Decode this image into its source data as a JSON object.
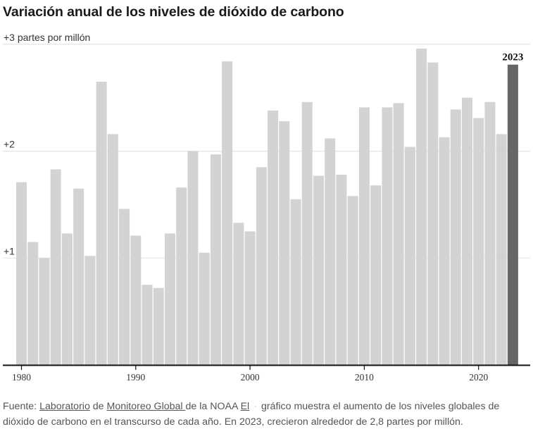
{
  "title": "Variación anual de los niveles de dióxido de carbono",
  "footer": {
    "source_prefix": "Fuente: ",
    "link1": "Laboratorio",
    "mid1": " de ",
    "link2": "Monitoreo Global ",
    "mid2": "de la NOAA ",
    "link3": "El",
    "separator": "·",
    "text": "gráfico muestra el aumento de los niveles globales de dióxido de carbono en el transcurso de cada año. En 2023, crecieron alrededor de 2,8 partes por millón."
  },
  "chart_data": {
    "type": "bar",
    "title": "Variación anual de los niveles de dióxido de carbono",
    "xlabel": "",
    "ylabel": "partes por millón",
    "ylim": [
      0,
      3
    ],
    "grid": true,
    "y_ticks": [
      {
        "value": 1,
        "label": "+1"
      },
      {
        "value": 2,
        "label": "+2"
      },
      {
        "value": 3,
        "label": "+3 partes por millón"
      }
    ],
    "x_ticks": [
      {
        "value": 1980,
        "label": "1980"
      },
      {
        "value": 1990,
        "label": "1990"
      },
      {
        "value": 2000,
        "label": "2000"
      },
      {
        "value": 2010,
        "label": "2010"
      },
      {
        "value": 2020,
        "label": "2020"
      }
    ],
    "highlight": {
      "year": 2023,
      "label": "2023",
      "color": "#666666"
    },
    "bar_color": "#d3d3d3",
    "categories": [
      1980,
      1981,
      1982,
      1983,
      1984,
      1985,
      1986,
      1987,
      1988,
      1989,
      1990,
      1991,
      1992,
      1993,
      1994,
      1995,
      1996,
      1997,
      1998,
      1999,
      2000,
      2001,
      2002,
      2003,
      2004,
      2005,
      2006,
      2007,
      2008,
      2009,
      2010,
      2011,
      2012,
      2013,
      2014,
      2015,
      2016,
      2017,
      2018,
      2019,
      2020,
      2021,
      2022,
      2023
    ],
    "values": [
      1.71,
      1.15,
      1.0,
      1.83,
      1.23,
      1.65,
      1.02,
      2.65,
      2.16,
      1.46,
      1.21,
      0.75,
      0.72,
      1.23,
      1.66,
      2.0,
      1.05,
      1.97,
      2.84,
      1.33,
      1.25,
      1.85,
      2.38,
      2.28,
      1.55,
      2.46,
      1.77,
      2.12,
      1.78,
      1.58,
      2.41,
      1.68,
      2.41,
      2.45,
      2.04,
      2.96,
      2.83,
      2.13,
      2.39,
      2.5,
      2.31,
      2.46,
      2.16,
      2.81
    ]
  }
}
